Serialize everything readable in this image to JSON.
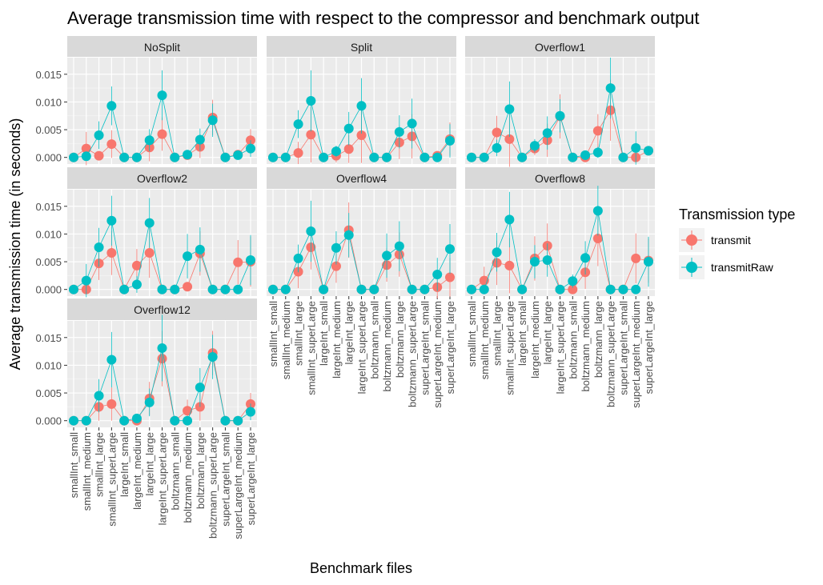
{
  "chart_data": {
    "type": "line",
    "title": "Average transmission time with respect to the compressor and benchmark output",
    "xlabel": "Benchmark files",
    "ylabel": "Average transmission time (in seconds)",
    "ylim": [
      -0.0012,
      0.018
    ],
    "yticks": [
      0.0,
      0.005,
      0.01,
      0.015
    ],
    "ytick_labels": [
      "0.000",
      "0.005",
      "0.010",
      "0.015"
    ],
    "grid": true,
    "legend": {
      "title": "Transmission type",
      "position": "right",
      "entries": [
        "transmit",
        "transmitRaw"
      ]
    },
    "colors": {
      "transmit": "#F8766D",
      "transmitRaw": "#00BFC4"
    },
    "categories": [
      "smallInt_small",
      "smallInt_medium",
      "smallInt_large",
      "smallInt_superLarge",
      "largeInt_small",
      "largeInt_medium",
      "largeInt_large",
      "largeInt_superLarge",
      "boltzmann_small",
      "boltzmann_medium",
      "boltzmann_large",
      "boltzmann_superLarge",
      "superLargeInt_small",
      "superLargeInt_medium",
      "superLargeInt_large"
    ],
    "panels": [
      {
        "name": "NoSplit",
        "series": [
          {
            "name": "transmit",
            "values": [
              0.0,
              0.0016,
              0.0003,
              0.0024,
              0.0,
              0.0,
              0.0018,
              0.0042,
              0.0,
              0.0004,
              0.0019,
              0.0072,
              0.0,
              0.0005,
              0.0031
            ],
            "err": [
              0.0003,
              0.003,
              0.0006,
              0.0025,
              0.0003,
              0.0003,
              0.0025,
              0.003,
              0.0002,
              0.0006,
              0.002,
              0.0032,
              0.0002,
              0.0007,
              0.002
            ]
          },
          {
            "name": "transmitRaw",
            "values": [
              0.0,
              0.0002,
              0.004,
              0.0093,
              0.0,
              0.0,
              0.0031,
              0.0112,
              0.0,
              0.0005,
              0.0032,
              0.0067,
              0.0,
              0.0004,
              0.0016
            ],
            "err": [
              0.0002,
              0.0003,
              0.0025,
              0.0035,
              0.0002,
              0.0002,
              0.002,
              0.0045,
              0.0002,
              0.0005,
              0.002,
              0.003,
              0.0002,
              0.0005,
              0.0015
            ]
          }
        ]
      },
      {
        "name": "Split",
        "series": [
          {
            "name": "transmit",
            "values": [
              0.0,
              0.0,
              0.0008,
              0.0041,
              0.0,
              0.0003,
              0.0015,
              0.004,
              0.0,
              0.0,
              0.0027,
              0.0038,
              0.0,
              0.0003,
              0.0033
            ],
            "err": [
              0.0003,
              0.0003,
              0.002,
              0.005,
              0.0002,
              0.0012,
              0.0025,
              0.005,
              0.0002,
              0.0003,
              0.003,
              0.004,
              0.0002,
              0.0008,
              0.003
            ]
          },
          {
            "name": "transmitRaw",
            "values": [
              0.0,
              0.0,
              0.006,
              0.0102,
              0.0,
              0.0011,
              0.0052,
              0.0093,
              0.0,
              0.0,
              0.0046,
              0.0061,
              0.0,
              0.0,
              0.003
            ],
            "err": [
              0.0002,
              0.0002,
              0.0025,
              0.0055,
              0.0002,
              0.001,
              0.003,
              0.005,
              0.0002,
              0.0002,
              0.003,
              0.0045,
              0.0002,
              0.0002,
              0.003
            ]
          }
        ]
      },
      {
        "name": "Overflow1",
        "series": [
          {
            "name": "transmit",
            "values": [
              0.0,
              0.0,
              0.0045,
              0.0033,
              0.0,
              0.0016,
              0.0031,
              0.0074,
              0.0,
              0.0,
              0.0048,
              0.0085,
              0.0,
              0.0,
              0.0012
            ],
            "err": [
              0.0002,
              0.0003,
              0.003,
              0.005,
              0.0002,
              0.0012,
              0.003,
              0.004,
              0.0002,
              0.0002,
              0.003,
              0.0055,
              0.0002,
              0.0002,
              0.0008
            ]
          },
          {
            "name": "transmitRaw",
            "values": [
              0.0,
              0.0,
              0.0017,
              0.0087,
              0.0,
              0.0021,
              0.0044,
              0.0075,
              0.0,
              0.0004,
              0.0009,
              0.0125,
              0.0,
              0.0017,
              0.0012
            ],
            "err": [
              0.0002,
              0.0002,
              0.0015,
              0.005,
              0.0002,
              0.0012,
              0.003,
              0.003,
              0.0002,
              0.0005,
              0.001,
              0.0055,
              0.0002,
              0.003,
              0.0008
            ]
          }
        ]
      },
      {
        "name": "Overflow2",
        "series": [
          {
            "name": "transmit",
            "values": [
              0.0,
              0.0,
              0.0047,
              0.0066,
              0.0,
              0.0043,
              0.0066,
              0.0,
              0.0,
              0.0005,
              0.0065,
              0.0,
              0.0,
              0.0049,
              0.005
            ],
            "err": [
              0.0002,
              0.0003,
              0.003,
              0.004,
              0.0002,
              0.003,
              0.0045,
              0.0002,
              0.0002,
              0.0008,
              0.004,
              0.0002,
              0.0002,
              0.004,
              0.0045
            ]
          },
          {
            "name": "transmitRaw",
            "values": [
              0.0,
              0.0016,
              0.0076,
              0.0124,
              0.0,
              0.0009,
              0.012,
              0.0,
              0.0,
              0.006,
              0.0072,
              0.0,
              0.0,
              0.0,
              0.0053
            ],
            "err": [
              0.0002,
              0.003,
              0.0035,
              0.0045,
              0.0002,
              0.0015,
              0.0045,
              0.0002,
              0.0002,
              0.004,
              0.004,
              0.0002,
              0.0002,
              0.0002,
              0.0045
            ]
          }
        ]
      },
      {
        "name": "Overflow4",
        "series": [
          {
            "name": "transmit",
            "values": [
              0.0,
              0.0,
              0.0032,
              0.0076,
              0.0,
              0.0042,
              0.0107,
              0.0,
              0.0,
              0.0044,
              0.0063,
              0.0,
              0.0,
              0.0004,
              0.0022
            ],
            "err": [
              0.0002,
              0.0002,
              0.003,
              0.004,
              0.0002,
              0.003,
              0.005,
              0.0002,
              0.0002,
              0.003,
              0.004,
              0.0002,
              0.0002,
              0.002,
              0.0035
            ]
          },
          {
            "name": "transmitRaw",
            "values": [
              0.0,
              0.0,
              0.0056,
              0.0105,
              0.0,
              0.0075,
              0.0098,
              0.0,
              0.0,
              0.0061,
              0.0078,
              0.0,
              0.0,
              0.0027,
              0.0073
            ],
            "err": [
              0.0002,
              0.0002,
              0.0025,
              0.0055,
              0.0002,
              0.003,
              0.004,
              0.0002,
              0.0002,
              0.004,
              0.0045,
              0.0002,
              0.0002,
              0.003,
              0.0045
            ]
          }
        ]
      },
      {
        "name": "Overflow8",
        "series": [
          {
            "name": "transmit",
            "values": [
              0.0,
              0.0016,
              0.0048,
              0.0043,
              0.0,
              0.0056,
              0.0079,
              0.0,
              0.0,
              0.0031,
              0.0092,
              0.0,
              0.0,
              0.0056,
              0.0052
            ],
            "err": [
              0.0002,
              0.0025,
              0.004,
              0.005,
              0.0002,
              0.004,
              0.004,
              0.0002,
              0.0002,
              0.003,
              0.005,
              0.0002,
              0.0002,
              0.0045,
              0.004
            ]
          },
          {
            "name": "transmitRaw",
            "values": [
              0.0,
              0.0,
              0.0067,
              0.0126,
              0.0,
              0.005,
              0.0053,
              0.0,
              0.0015,
              0.0057,
              0.0142,
              0.0,
              0.0,
              0.0,
              0.005
            ],
            "err": [
              0.0002,
              0.0002,
              0.0035,
              0.005,
              0.0002,
              0.003,
              0.003,
              0.0002,
              0.0012,
              0.003,
              0.0045,
              0.0002,
              0.0002,
              0.0002,
              0.0045
            ]
          }
        ]
      },
      {
        "name": "Overflow12",
        "series": [
          {
            "name": "transmit",
            "values": [
              0.0,
              0.0,
              0.0025,
              0.003,
              0.0,
              0.0,
              0.004,
              0.0112,
              0.0,
              0.0018,
              0.0025,
              0.0122,
              0.0,
              0.0,
              0.003
            ],
            "err": [
              0.0002,
              0.0002,
              0.0025,
              0.003,
              0.0002,
              0.0002,
              0.003,
              0.005,
              0.0002,
              0.002,
              0.0025,
              0.004,
              0.0002,
              0.0002,
              0.002
            ]
          },
          {
            "name": "transmitRaw",
            "values": [
              0.0,
              0.0,
              0.0045,
              0.011,
              0.0,
              0.0004,
              0.0033,
              0.0131,
              0.0,
              0.0,
              0.006,
              0.0115,
              0.0,
              0.0,
              0.0016
            ],
            "err": [
              0.0002,
              0.0002,
              0.003,
              0.005,
              0.0002,
              0.0004,
              0.0025,
              0.006,
              0.0002,
              0.0002,
              0.0035,
              0.004,
              0.0002,
              0.0002,
              0.0015
            ]
          }
        ]
      }
    ]
  }
}
